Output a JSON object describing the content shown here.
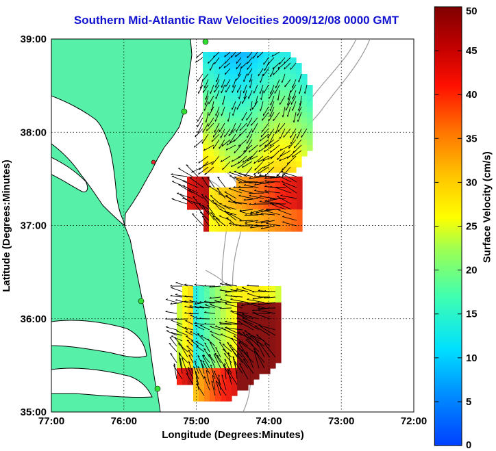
{
  "title": "Southern Mid-Atlantic Raw Velocities 2009/12/08 0000 GMT",
  "x_axis": {
    "label": "Longitude (Degrees:Minutes)",
    "ticks": [
      "77:00",
      "76:00",
      "75:00",
      "74:00",
      "73:00",
      "72:00"
    ]
  },
  "y_axis": {
    "label": "Latitude (Degrees:Minutes)",
    "ticks": [
      "39:00",
      "38:00",
      "37:00",
      "36:00",
      "35:00"
    ]
  },
  "colorbar": {
    "label": "Surface Velocity (cm/s)",
    "ticks": [
      "50",
      "45",
      "40",
      "35",
      "30",
      "25",
      "20",
      "15",
      "10",
      "5",
      "0"
    ],
    "range": [
      0,
      50
    ],
    "colormap": "jet"
  },
  "colors": {
    "land": "#57f0a9",
    "coast": "#000000",
    "bathymetry": "#9a9a9a",
    "title": "#1010d0",
    "grid": "#000000",
    "station": "#33dd33",
    "station_alt": "#e03030"
  },
  "map_extent": {
    "lon_range": [
      -77,
      -72
    ],
    "lat_range": [
      35,
      39
    ]
  }
}
